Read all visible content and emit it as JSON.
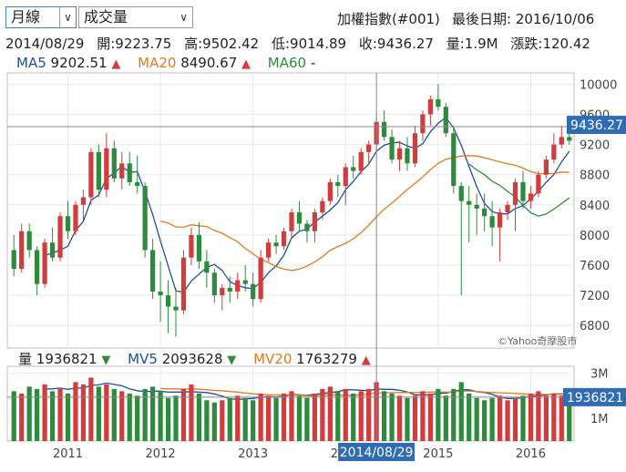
{
  "controls": {
    "period_value": "月線",
    "indicator_value": "成交量"
  },
  "header": {
    "index_name": "加權指數(#001)",
    "last_date": "最後日期: 2016/10/06"
  },
  "ohlc_line": {
    "date": "2014/08/29",
    "open": "開:9223.75",
    "high": "高:9502.42",
    "low": "低:9014.89",
    "close": "收:9436.27",
    "volume": "量:1.9M",
    "change": "漲跌:120.42"
  },
  "price_legend": [
    {
      "name": "MA5",
      "value": "9202.51",
      "arrow": "▲",
      "color": "#1f4e9c"
    },
    {
      "name": "MA20",
      "value": "8490.67",
      "arrow": "▲",
      "color": "#e07a1f"
    },
    {
      "name": "MA60",
      "value": "-",
      "arrow": "",
      "color": "#2e8b3e"
    }
  ],
  "volume_legend": [
    {
      "name": "量",
      "value": "1936821",
      "arrow": "▼",
      "color": "#222222"
    },
    {
      "name": "MV5",
      "value": "2093628",
      "arrow": "▼",
      "color": "#1f4e9c"
    },
    {
      "name": "MV20",
      "value": "1763279",
      "arrow": "▲",
      "color": "#e07a1f"
    }
  ],
  "colors": {
    "up": "#d23c3c",
    "down": "#2e8b3e",
    "ma5": "#1f4e9c",
    "ma20": "#e07a1f",
    "ma60": "#2e8b3e",
    "tag": "#2f6cb3"
  },
  "watermark": "©Yahoo奇摩股市",
  "crosshair": {
    "date_label": "2014/08/29",
    "price_label": "9436.27",
    "volume_label": "1936821",
    "price": 9436.27,
    "volume": 1936821,
    "index": 47
  },
  "chart_data": {
    "type": "candlestick",
    "series": "月線 OHLC",
    "y_ticks": [
      "10000",
      "9600",
      "9200",
      "8800",
      "8400",
      "8000",
      "7600",
      "7200",
      "6800"
    ],
    "ylim": [
      6500,
      10150
    ],
    "volume_ticks": [
      "3M",
      "2M",
      "1M"
    ],
    "volume_ylim": [
      0,
      3300000
    ],
    "x_ticks": [
      "2011",
      "2012",
      "2013",
      "2014",
      "2015",
      "2016"
    ],
    "x_tick_index": [
      7,
      19,
      31,
      43,
      55,
      67
    ],
    "ohlc": [
      [
        7800,
        8000,
        7450,
        7550
      ],
      [
        7550,
        8150,
        7500,
        8050
      ],
      [
        8050,
        8150,
        7700,
        7800
      ],
      [
        7800,
        7850,
        7200,
        7350
      ],
      [
        7350,
        7950,
        7300,
        7900
      ],
      [
        7900,
        8100,
        7650,
        7700
      ],
      [
        7700,
        8300,
        7650,
        8250
      ],
      [
        8250,
        8450,
        7950,
        8050
      ],
      [
        8050,
        8450,
        8000,
        8400
      ],
      [
        8400,
        8600,
        8200,
        8500
      ],
      [
        8500,
        9150,
        8400,
        9100
      ],
      [
        9100,
        9200,
        8500,
        8600
      ],
      [
        8600,
        9350,
        8500,
        9150
      ],
      [
        9150,
        9250,
        8700,
        8750
      ],
      [
        8750,
        9100,
        8600,
        8950
      ],
      [
        8950,
        9100,
        8650,
        8700
      ],
      [
        8700,
        9050,
        8550,
        8650
      ],
      [
        8650,
        8700,
        7700,
        7800
      ],
      [
        7800,
        7950,
        7150,
        7250
      ],
      [
        7250,
        7650,
        6850,
        7200
      ],
      [
        7200,
        7400,
        6700,
        7050
      ],
      [
        7050,
        7300,
        6650,
        7000
      ],
      [
        7000,
        7800,
        6950,
        7700
      ],
      [
        7700,
        8100,
        7600,
        8000
      ],
      [
        8000,
        8170,
        7550,
        7650
      ],
      [
        7650,
        7800,
        7300,
        7500
      ],
      [
        7500,
        7550,
        7100,
        7200
      ],
      [
        7200,
        7350,
        7000,
        7300
      ],
      [
        7300,
        7450,
        7100,
        7250
      ],
      [
        7250,
        7500,
        7150,
        7400
      ],
      [
        7400,
        7600,
        7250,
        7350
      ],
      [
        7350,
        7500,
        7050,
        7150
      ],
      [
        7150,
        7800,
        7100,
        7700
      ],
      [
        7700,
        7950,
        7650,
        7900
      ],
      [
        7900,
        8000,
        7750,
        7850
      ],
      [
        7850,
        8100,
        7800,
        8050
      ],
      [
        8050,
        8350,
        7950,
        8300
      ],
      [
        8300,
        8450,
        8050,
        8150
      ],
      [
        8150,
        8200,
        7900,
        8050
      ],
      [
        8050,
        8350,
        7900,
        8300
      ],
      [
        8300,
        8500,
        8200,
        8450
      ],
      [
        8450,
        8750,
        8400,
        8700
      ],
      [
        8700,
        8800,
        8500,
        8650
      ],
      [
        8650,
        8950,
        8400,
        8900
      ],
      [
        8900,
        9050,
        8750,
        8850
      ],
      [
        8850,
        9150,
        8800,
        9100
      ],
      [
        9100,
        9250,
        8950,
        9200
      ],
      [
        9200,
        9600,
        9100,
        9500
      ],
      [
        9500,
        9650,
        9250,
        9300
      ],
      [
        9300,
        9400,
        8950,
        9000
      ],
      [
        9000,
        9250,
        8850,
        9150
      ],
      [
        9150,
        9300,
        8850,
        8950
      ],
      [
        8950,
        9450,
        8900,
        9350
      ],
      [
        9350,
        9650,
        9250,
        9600
      ],
      [
        9600,
        9850,
        9450,
        9800
      ],
      [
        9800,
        10000,
        9650,
        9700
      ],
      [
        9700,
        9750,
        9300,
        9350
      ],
      [
        9350,
        9450,
        8550,
        8650
      ],
      [
        8650,
        8700,
        7200,
        8450
      ],
      [
        8450,
        8650,
        7900,
        8400
      ],
      [
        8400,
        8550,
        8000,
        8350
      ],
      [
        8350,
        8550,
        8050,
        8250
      ],
      [
        8250,
        8450,
        7850,
        8100
      ],
      [
        8100,
        8350,
        7650,
        8300
      ],
      [
        8300,
        8450,
        8200,
        8400
      ],
      [
        8400,
        8750,
        8050,
        8700
      ],
      [
        8700,
        8850,
        8350,
        8450
      ],
      [
        8450,
        8650,
        8350,
        8550
      ],
      [
        8550,
        8850,
        8500,
        8800
      ],
      [
        8800,
        9050,
        8750,
        9000
      ],
      [
        9000,
        9350,
        8950,
        9200
      ],
      [
        9200,
        9450,
        9150,
        9300
      ],
      [
        9300,
        9350,
        9200,
        9250
      ]
    ],
    "volume": [
      2200000,
      2100000,
      2400000,
      2300000,
      2500000,
      2200000,
      2300000,
      2100000,
      2600000,
      2500000,
      2800000,
      2400000,
      2500000,
      2300000,
      2200000,
      2100000,
      2000000,
      2300000,
      2400000,
      2200000,
      1900000,
      2000000,
      2300000,
      2500000,
      2100000,
      1800000,
      1700000,
      1800000,
      1900000,
      2000000,
      1900000,
      1800000,
      2100000,
      2000000,
      1900000,
      2100000,
      2200000,
      2000000,
      1900000,
      2100000,
      2300000,
      2400000,
      2200000,
      2300000,
      2100000,
      2200000,
      2300000,
      2600000,
      2200000,
      2100000,
      2000000,
      1900000,
      2000000,
      2200000,
      2100000,
      2300000,
      2000000,
      2300000,
      2600000,
      2100000,
      1900000,
      1800000,
      1900000,
      2000000,
      1800000,
      1900000,
      2000000,
      2100000,
      2200000,
      2000000,
      2100000,
      2000000,
      1936821
    ]
  }
}
